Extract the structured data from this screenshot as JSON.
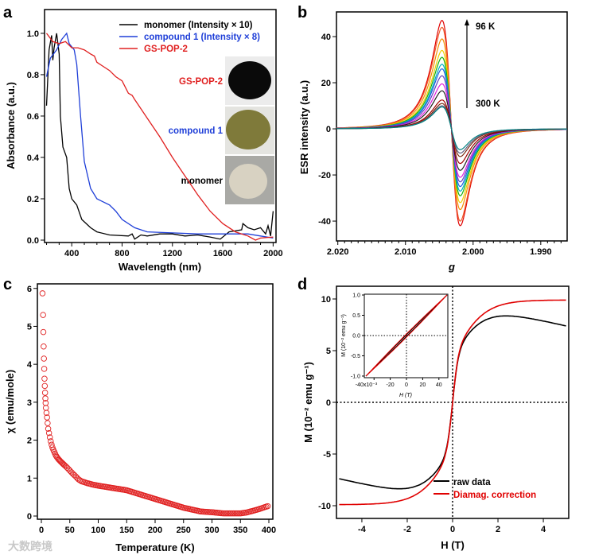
{
  "panel_labels": [
    "a",
    "b",
    "c",
    "d"
  ],
  "watermark": "大数跨境",
  "chart_data": [
    {
      "type": "line",
      "panel": "a",
      "xlabel": "Wavelength (nm)",
      "ylabel": "Absorbance (a.u.)",
      "xlim": [
        184,
        2023
      ],
      "ylim": [
        -0.0115,
        1.115
      ],
      "xticks": [
        400,
        800,
        1200,
        1600,
        2000
      ],
      "yticks": [
        0.0,
        0.2,
        0.4,
        0.6,
        0.8,
        1.0
      ],
      "ytick_labels": [
        "0.0",
        "0.2",
        "0.4",
        "0.6",
        "0.8",
        "1.0"
      ],
      "legend_placement": "top-right",
      "photo_labels": [
        "GS-POP-2",
        "compound 1",
        "monomer"
      ],
      "photo_colors": [
        "#0a0a0a",
        "#7f7a3a",
        "#d8d2c2"
      ],
      "series": [
        {
          "name": "monomer (Intensity × 10)",
          "color": "#000000",
          "x": [
            200,
            220,
            240,
            250,
            260,
            280,
            300,
            310,
            330,
            360,
            380,
            400,
            440,
            480,
            550,
            600,
            700,
            850,
            880,
            900,
            950,
            1000,
            1100,
            1200,
            1300,
            1400,
            1500,
            1580,
            1650,
            1750,
            1760,
            1800,
            1850,
            1900,
            1940,
            1960,
            1980,
            2000
          ],
          "y": [
            0.65,
            0.92,
            0.99,
            0.87,
            0.93,
            1.0,
            0.9,
            0.6,
            0.45,
            0.4,
            0.25,
            0.2,
            0.17,
            0.1,
            0.06,
            0.04,
            0.025,
            0.02,
            0.03,
            0.005,
            0.025,
            0.02,
            0.03,
            0.03,
            0.02,
            0.025,
            0.015,
            0.005,
            0.04,
            0.05,
            0.08,
            0.06,
            0.05,
            0.06,
            0.03,
            0.07,
            0.02,
            0.14
          ]
        },
        {
          "name": "compound 1 (Intensity × 8)",
          "color": "#1f3fd8",
          "x": [
            200,
            230,
            280,
            320,
            360,
            380,
            420,
            440,
            470,
            500,
            550,
            600,
            700,
            750,
            800,
            900,
            1000,
            1200,
            1400,
            1600,
            1800,
            1900,
            2000
          ],
          "y": [
            0.79,
            0.88,
            0.92,
            0.97,
            1.0,
            0.95,
            0.92,
            0.85,
            0.6,
            0.38,
            0.25,
            0.2,
            0.17,
            0.14,
            0.1,
            0.06,
            0.04,
            0.035,
            0.03,
            0.03,
            0.03,
            0.02,
            0.01
          ]
        },
        {
          "name": "GS-POP-2",
          "color": "#e02020",
          "x": [
            200,
            250,
            300,
            350,
            400,
            450,
            500,
            550,
            580,
            600,
            650,
            700,
            750,
            800,
            850,
            880,
            900,
            1000,
            1100,
            1200,
            1300,
            1400,
            1500,
            1600,
            1700,
            1800,
            1860,
            1900,
            2000
          ],
          "y": [
            1.0,
            0.96,
            0.95,
            0.96,
            0.93,
            0.93,
            0.92,
            0.9,
            0.89,
            0.86,
            0.84,
            0.82,
            0.79,
            0.77,
            0.71,
            0.7,
            0.68,
            0.59,
            0.5,
            0.4,
            0.31,
            0.22,
            0.14,
            0.08,
            0.04,
            0.02,
            0.0,
            0.01,
            0.015
          ]
        }
      ]
    },
    {
      "type": "line",
      "panel": "b",
      "xlabel": "g",
      "ylabel": "ESR intensity (a.u.)",
      "xlim": [
        2.0202,
        1.9861
      ],
      "ylim": [
        -48.6,
        50.7
      ],
      "xticks": [
        2.02,
        2.01,
        2.0,
        1.99
      ],
      "xtick_labels": [
        "2.020",
        "2.010",
        "2.000",
        "1.990"
      ],
      "yticks": [
        -40,
        -20,
        0,
        20,
        40
      ],
      "annotation_top": "96 K",
      "annotation_bottom": "300 K",
      "line_center_g": 2.0032,
      "peak_g": 2.0046,
      "trough_g": 2.0019,
      "series": [
        {
          "color": "#e00000",
          "peak_max": 47,
          "peak_min": -42
        },
        {
          "color": "#f05a28",
          "peak_max": 44,
          "peak_min": -40
        },
        {
          "color": "#f39000",
          "peak_max": 39,
          "peak_min": -35
        },
        {
          "color": "#f0d000",
          "peak_max": 34,
          "peak_min": -32
        },
        {
          "color": "#10b010",
          "peak_max": 31,
          "peak_min": -29
        },
        {
          "color": "#00b0c0",
          "peak_max": 28,
          "peak_min": -27
        },
        {
          "color": "#2060e0",
          "peak_max": 26,
          "peak_min": -25
        },
        {
          "color": "#6040c0",
          "peak_max": 23,
          "peak_min": -23
        },
        {
          "color": "#e020e0",
          "peak_max": 19.5,
          "peak_min": -21
        },
        {
          "color": "#202020",
          "peak_max": 16.5,
          "peak_min": -18
        },
        {
          "color": "#a00000",
          "peak_max": 12.5,
          "peak_min": -15
        },
        {
          "color": "#7a2a10",
          "peak_max": 11,
          "peak_min": -12
        },
        {
          "color": "#606080",
          "peak_max": 10,
          "peak_min": -10.5
        },
        {
          "color": "#008080",
          "peak_max": 9.5,
          "peak_min": -9
        }
      ]
    },
    {
      "type": "scatter",
      "panel": "c",
      "xlabel": "Temperature (K)",
      "ylabel": "χ (emu/mole)",
      "xlim": [
        -7,
        407
      ],
      "ylim": [
        -0.084,
        6.12
      ],
      "xticks": [
        0,
        50,
        100,
        150,
        200,
        250,
        300,
        350,
        400
      ],
      "yticks": [
        0,
        1,
        2,
        3,
        4,
        5,
        6
      ],
      "marker_color": "#e02020",
      "x": [
        2,
        3,
        3.5,
        4,
        4.5,
        5,
        5.5,
        6,
        6.5,
        7,
        7.5,
        8,
        9,
        10,
        11,
        12,
        14,
        16,
        18,
        20,
        23,
        26,
        30,
        35,
        40,
        45,
        50,
        55,
        60,
        65,
        70,
        80,
        90,
        100,
        150,
        200,
        250,
        280,
        300,
        320,
        350,
        360,
        380,
        400
      ],
      "y": [
        5.87,
        5.3,
        4.85,
        4.47,
        4.15,
        3.88,
        3.62,
        3.43,
        3.25,
        3.1,
        2.98,
        2.85,
        2.72,
        2.6,
        2.45,
        2.3,
        2.15,
        2.0,
        1.88,
        1.78,
        1.68,
        1.58,
        1.5,
        1.42,
        1.35,
        1.28,
        1.2,
        1.12,
        1.05,
        0.97,
        0.92,
        0.87,
        0.83,
        0.8,
        0.68,
        0.45,
        0.22,
        0.12,
        0.1,
        0.07,
        0.07,
        0.09,
        0.17,
        0.27
      ]
    },
    {
      "type": "line",
      "panel": "d",
      "xlabel": "H (T)",
      "ylabel": "M (10⁻² emu g⁻¹)",
      "xlim": [
        -5.12,
        5.12
      ],
      "ylim": [
        -11.23,
        11.23
      ],
      "xticks": [
        -4,
        -2,
        0,
        2,
        4
      ],
      "yticks": [
        -10,
        -5,
        0,
        5,
        10
      ],
      "legend_placement": "bottom-right",
      "series": [
        {
          "name": "raw data",
          "color": "#000000",
          "steep_amp": 4.5,
          "steep_width": 0.25,
          "slow_amp": 5.4,
          "slow_width": 1.4,
          "diamag_slope": -0.5
        },
        {
          "name": "Diamag. correction",
          "color": "#e00000",
          "steep_amp": 4.5,
          "steep_width": 0.25,
          "slow_amp": 5.4,
          "slow_width": 1.4,
          "diamag_slope": 0
        }
      ],
      "inset": {
        "xlabel": "H (T)",
        "ylabel": "M (10⁻² emu g⁻¹)",
        "xlim": [
          -52,
          51
        ],
        "ylim": [
          -1.04,
          1.02
        ],
        "xticks": [
          -40,
          -20,
          0,
          20,
          40
        ],
        "xtick_labels": [
          "-40x10⁻³",
          "-20",
          "0",
          "20",
          "40"
        ],
        "yticks": [
          -1,
          -0.5,
          0,
          0.5,
          1
        ],
        "ytick_labels": [
          "-1.0",
          "-0.5",
          "0.0",
          "0.5",
          "1.0"
        ],
        "loop_offset": 0.04
      }
    }
  ]
}
